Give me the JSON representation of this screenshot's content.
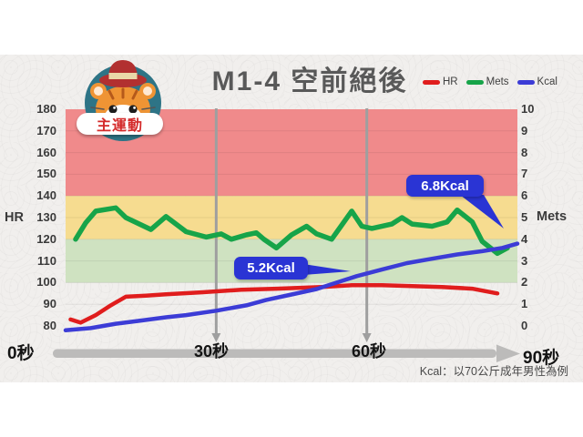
{
  "header": {
    "badge": "主運動"
  },
  "chart_data": {
    "type": "line",
    "title": "M1-4  空前絕後",
    "footnote": "Kcal：以70公斤成年男性為例",
    "x_axis": {
      "min": 0,
      "max": 90,
      "labels": [
        "0秒",
        "30秒",
        "60秒",
        "90秒"
      ],
      "marker_lines_sec": [
        30,
        60
      ]
    },
    "left_axis": {
      "label": "HR",
      "min": 80,
      "max": 180,
      "ticks": [
        180,
        170,
        160,
        150,
        140,
        130,
        120,
        110,
        100,
        90,
        80
      ]
    },
    "right_axis": {
      "label": "Mets",
      "min": 0,
      "max": 10,
      "ticks": [
        10,
        9,
        8,
        7,
        6,
        5,
        4,
        3,
        2,
        1,
        0
      ]
    },
    "zones": [
      {
        "name": "high-hr-zone",
        "hr_range": [
          140,
          180
        ],
        "color": "#f08a8b"
      },
      {
        "name": "target-hr-zone",
        "hr_range": [
          120,
          140
        ],
        "color": "#f6dc90"
      },
      {
        "name": "warmup-hr-zone",
        "hr_range": [
          100,
          120
        ],
        "color": "#cfe2c1"
      }
    ],
    "series": [
      {
        "name": "HR",
        "axis": "left",
        "color": "#e01d1d",
        "points": [
          [
            1,
            83
          ],
          [
            3,
            81.5
          ],
          [
            6,
            85
          ],
          [
            9,
            89.5
          ],
          [
            12,
            93.5
          ],
          [
            16,
            94
          ],
          [
            20,
            94.6
          ],
          [
            27,
            95.5
          ],
          [
            35,
            96.7
          ],
          [
            42,
            97.2
          ],
          [
            51,
            98
          ],
          [
            57,
            98.8
          ],
          [
            63,
            98.8
          ],
          [
            69,
            98.4
          ],
          [
            75,
            98
          ],
          [
            81,
            97.2
          ],
          [
            86,
            95
          ]
        ]
      },
      {
        "name": "Mets",
        "axis": "right",
        "color": "#17a449",
        "points": [
          [
            2,
            4.0
          ],
          [
            4,
            4.75
          ],
          [
            6,
            5.3
          ],
          [
            10,
            5.45
          ],
          [
            12,
            5.0
          ],
          [
            17,
            4.45
          ],
          [
            20,
            5.05
          ],
          [
            24,
            4.35
          ],
          [
            28,
            4.1
          ],
          [
            31,
            4.25
          ],
          [
            33,
            4.0
          ],
          [
            36,
            4.2
          ],
          [
            38,
            4.3
          ],
          [
            39.5,
            4.0
          ],
          [
            42,
            3.6
          ],
          [
            45,
            4.2
          ],
          [
            48,
            4.6
          ],
          [
            50,
            4.25
          ],
          [
            53,
            4.0
          ],
          [
            57,
            5.3
          ],
          [
            59,
            4.6
          ],
          [
            61,
            4.5
          ],
          [
            65,
            4.7
          ],
          [
            67,
            5.0
          ],
          [
            69,
            4.7
          ],
          [
            73,
            4.6
          ],
          [
            76,
            4.8
          ],
          [
            78,
            5.35
          ],
          [
            81,
            4.8
          ],
          [
            83,
            3.9
          ],
          [
            86,
            3.35
          ],
          [
            88,
            3.6
          ]
        ]
      },
      {
        "name": "Kcal",
        "axis": "right",
        "color": "#3c3cd6",
        "points": [
          [
            0,
            -0.2
          ],
          [
            5,
            -0.1
          ],
          [
            10,
            0.1
          ],
          [
            15,
            0.25
          ],
          [
            20,
            0.4
          ],
          [
            24,
            0.5
          ],
          [
            30,
            0.7
          ],
          [
            36,
            0.95
          ],
          [
            40,
            1.2
          ],
          [
            45,
            1.45
          ],
          [
            50,
            1.7
          ],
          [
            54,
            2.0
          ],
          [
            58,
            2.3
          ],
          [
            63,
            2.6
          ],
          [
            68,
            2.9
          ],
          [
            73,
            3.1
          ],
          [
            78,
            3.3
          ],
          [
            83,
            3.45
          ],
          [
            87,
            3.6
          ],
          [
            90,
            3.8
          ]
        ]
      }
    ],
    "annotations": [
      {
        "label": "5.2Kcal",
        "series": "Kcal",
        "t": 57
      },
      {
        "label": "6.8Kcal",
        "series": "Kcal",
        "t": 87
      }
    ]
  }
}
